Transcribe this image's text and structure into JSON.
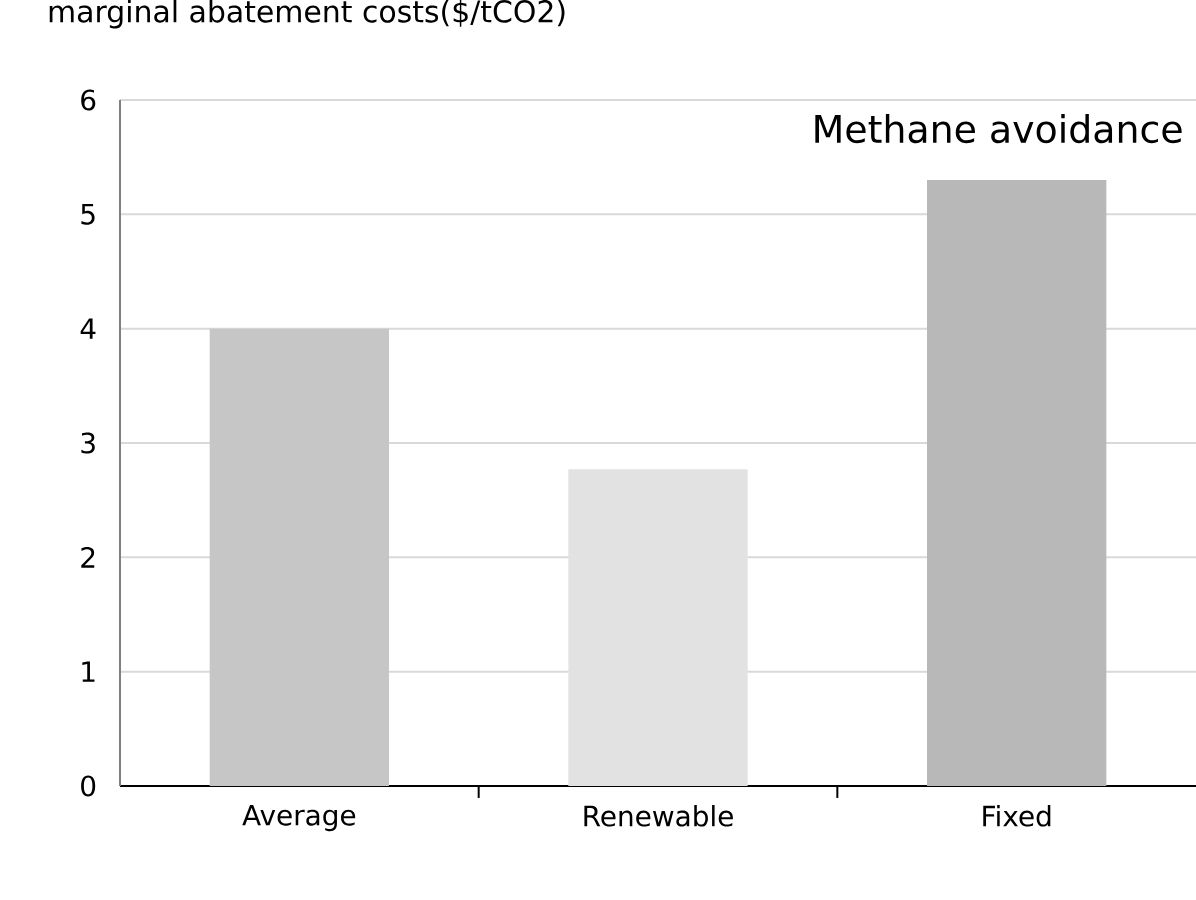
{
  "chart_data": {
    "type": "bar",
    "ylabel": "marginal abatement costs($/tCO2)",
    "annotations": [
      "Methane avoidance"
    ],
    "categories": [
      "Average",
      "Renewable",
      "Fixed"
    ],
    "values": [
      4.0,
      2.77,
      5.3
    ],
    "colors": [
      "#c6c6c6",
      "#e2e2e2",
      "#b8b8b8"
    ],
    "ylim": [
      0,
      6
    ],
    "yticks": [
      0,
      1,
      2,
      3,
      4,
      5,
      6
    ],
    "grid": "y"
  }
}
